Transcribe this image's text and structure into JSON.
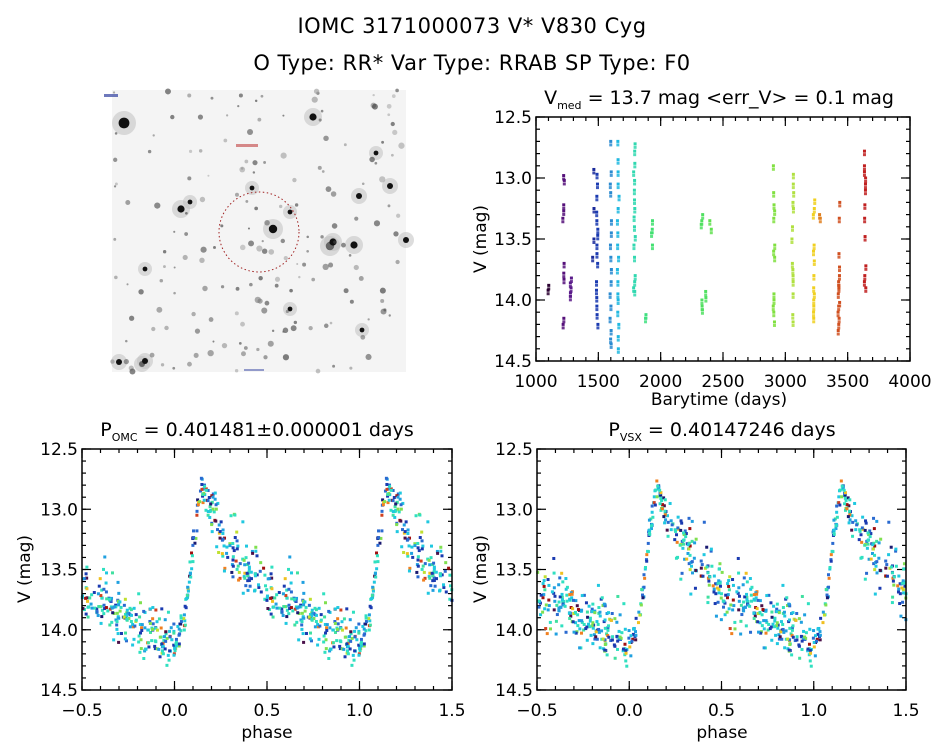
{
  "header": {
    "line1": "IOMC 3171000073    V* V830 Cyg",
    "line2": "O Type: RR*  Var Type: RRAB  SP Type: F0"
  },
  "finder_chart": {
    "description": "Grayscale sky image (inverted) with dashed red circle marking target",
    "circle_color": "#cc2222",
    "corner_labels_legible": false
  },
  "chart_data": [
    {
      "id": "lightcurve",
      "type": "scatter",
      "title_main": "V",
      "title_sub": "med",
      "title_rest": " = 13.7 mag <err_V> = 0.1 mag",
      "xlabel": "Barytime (days)",
      "ylabel": "V (mag)",
      "xlim": [
        1000,
        4000
      ],
      "ylim": [
        12.5,
        14.5
      ],
      "y_inverted": true,
      "xticks": [
        1000,
        1500,
        2000,
        2500,
        3000,
        3500,
        4000
      ],
      "xtick_labels": [
        "1000",
        "1500",
        "2000",
        "2500",
        "3000",
        "3500",
        "4000"
      ],
      "yticks": [
        12.5,
        13.0,
        13.5,
        14.0,
        14.5
      ],
      "ytick_labels": [
        "12.5",
        "13.0",
        "13.5",
        "14.0",
        "14.5"
      ],
      "color_map": "rainbow by time",
      "groups": [
        {
          "x": 1100,
          "color": "#2a0030",
          "mags": [
            13.88,
            13.92
          ]
        },
        {
          "x": 1220,
          "color": "#55107a",
          "mags": [
            12.98,
            13.02,
            13.22,
            13.27,
            13.33,
            13.7,
            13.78,
            13.83,
            14.15,
            14.2
          ]
        },
        {
          "x": 1280,
          "color": "#5a1a8a",
          "mags": [
            13.82,
            13.86,
            13.9,
            13.94,
            13.97
          ]
        },
        {
          "x": 1460,
          "color": "#1a2a9a",
          "mags": [
            12.93,
            13.25,
            13.5,
            13.65
          ]
        },
        {
          "x": 1490,
          "color": "#1a3ab0",
          "mags": [
            12.97,
            13.05,
            13.15,
            13.28,
            13.35,
            13.42,
            13.47,
            13.55,
            13.62,
            13.7,
            13.85,
            13.92,
            13.98,
            14.05,
            14.12,
            14.2
          ]
        },
        {
          "x": 1600,
          "color": "#2a8ad0",
          "mags": [
            12.7,
            12.95,
            13.05,
            13.12,
            13.35,
            13.45,
            13.55,
            13.65,
            13.75,
            13.85,
            13.95,
            14.05,
            14.15,
            14.25,
            14.32,
            14.36
          ]
        },
        {
          "x": 1660,
          "color": "#20b8e0",
          "mags": [
            12.7,
            12.85,
            12.95,
            13.05,
            13.15,
            13.25,
            13.35,
            13.45,
            13.55,
            13.65,
            13.75,
            13.85,
            13.95,
            14.0,
            14.1,
            14.2,
            14.3,
            14.4
          ]
        },
        {
          "x": 1790,
          "color": "#30d8b0",
          "mags": [
            12.72,
            12.78,
            12.88,
            12.95,
            13.02,
            13.1,
            13.18,
            13.25,
            13.32,
            13.4,
            13.48,
            13.55,
            13.65,
            13.8,
            13.85,
            13.9,
            13.93
          ]
        },
        {
          "x": 1880,
          "color": "#40e080",
          "mags": [
            14.12,
            14.15
          ]
        },
        {
          "x": 1930,
          "color": "#40e070",
          "mags": [
            13.35,
            13.42,
            13.45,
            13.55
          ]
        },
        {
          "x": 2330,
          "color": "#50e060",
          "mags": [
            13.3,
            13.35,
            13.38,
            14.0,
            14.05,
            14.08
          ]
        },
        {
          "x": 2360,
          "color": "#50e060",
          "mags": [
            13.93,
            13.98
          ]
        },
        {
          "x": 2400,
          "color": "#60e050",
          "mags": [
            13.35,
            13.42
          ]
        },
        {
          "x": 2910,
          "color": "#80e040",
          "mags": [
            12.9,
            13.12,
            13.22,
            13.27,
            13.33,
            13.55,
            13.6,
            13.65,
            13.95,
            14.0,
            14.05,
            14.1,
            14.18
          ]
        },
        {
          "x": 3060,
          "color": "#b0e040",
          "mags": [
            12.97,
            13.05,
            13.12,
            13.2,
            13.25,
            13.4,
            13.5,
            13.7,
            13.75,
            13.8,
            13.85,
            13.95,
            14.12,
            14.18
          ]
        },
        {
          "x": 3230,
          "color": "#f0d020",
          "mags": [
            13.18,
            13.25,
            13.3,
            13.55,
            13.6,
            13.68,
            13.8,
            13.9,
            13.95,
            14.0,
            14.05,
            14.1,
            14.15
          ]
        },
        {
          "x": 3280,
          "color": "#e08020",
          "mags": [
            13.3,
            13.33
          ]
        },
        {
          "x": 3430,
          "color": "#d05020",
          "mags": [
            13.2,
            13.33,
            13.62,
            13.73,
            13.8,
            13.85,
            13.88,
            13.9,
            13.95,
            14.02,
            14.05,
            14.1,
            14.15,
            14.2,
            14.25
          ]
        },
        {
          "x": 3640,
          "color": "#c02020",
          "mags": [
            12.78,
            12.9,
            12.95,
            13.0,
            13.05,
            13.1,
            13.22,
            13.33,
            13.48,
            13.72,
            13.8,
            13.85,
            13.9
          ]
        }
      ]
    },
    {
      "id": "phase-omc",
      "type": "scatter",
      "title_main": "P",
      "title_sub": "OMC",
      "title_rest": " = 0.401481±0.000001 days",
      "xlabel": "phase",
      "ylabel": "V (mag)",
      "xlim": [
        -0.5,
        1.5
      ],
      "ylim": [
        12.5,
        14.5
      ],
      "y_inverted": true,
      "xticks": [
        -0.5,
        0.0,
        0.5,
        1.0,
        1.5
      ],
      "xtick_labels": [
        "−0.5",
        "0.0",
        "0.5",
        "1.0",
        "1.5"
      ],
      "yticks": [
        12.5,
        13.0,
        13.5,
        14.0,
        14.5
      ],
      "ytick_labels": [
        "12.5",
        "13.0",
        "13.5",
        "14.0",
        "14.5"
      ],
      "template": [
        [
          0.0,
          14.15
        ],
        [
          0.05,
          13.95
        ],
        [
          0.08,
          13.6
        ],
        [
          0.1,
          13.3
        ],
        [
          0.13,
          13.0
        ],
        [
          0.15,
          12.8
        ],
        [
          0.18,
          12.95
        ],
        [
          0.25,
          13.2
        ],
        [
          0.32,
          13.35
        ],
        [
          0.4,
          13.5
        ],
        [
          0.5,
          13.65
        ],
        [
          0.6,
          13.75
        ],
        [
          0.7,
          13.85
        ],
        [
          0.8,
          13.95
        ],
        [
          0.9,
          14.02
        ],
        [
          0.95,
          14.1
        ],
        [
          1.0,
          14.15
        ]
      ],
      "scatter_mag": 0.12,
      "n_points_per_cycle": 420
    },
    {
      "id": "phase-vsx",
      "type": "scatter",
      "title_main": "P",
      "title_sub": "VSX",
      "title_rest": " = 0.40147246 days",
      "xlabel": "phase",
      "ylabel": "V (mag)",
      "xlim": [
        -0.5,
        1.5
      ],
      "ylim": [
        12.5,
        14.5
      ],
      "y_inverted": true,
      "xticks": [
        -0.5,
        0.0,
        0.5,
        1.0,
        1.5
      ],
      "xtick_labels": [
        "−0.5",
        "0.0",
        "0.5",
        "1.0",
        "1.5"
      ],
      "yticks": [
        12.5,
        13.0,
        13.5,
        14.0,
        14.5
      ],
      "ytick_labels": [
        "12.5",
        "13.0",
        "13.5",
        "14.0",
        "14.5"
      ],
      "template": [
        [
          0.0,
          14.15
        ],
        [
          0.05,
          13.95
        ],
        [
          0.08,
          13.6
        ],
        [
          0.1,
          13.3
        ],
        [
          0.13,
          13.0
        ],
        [
          0.15,
          12.8
        ],
        [
          0.18,
          12.95
        ],
        [
          0.25,
          13.2
        ],
        [
          0.32,
          13.35
        ],
        [
          0.4,
          13.5
        ],
        [
          0.5,
          13.65
        ],
        [
          0.6,
          13.75
        ],
        [
          0.7,
          13.85
        ],
        [
          0.8,
          13.95
        ],
        [
          0.9,
          14.02
        ],
        [
          0.95,
          14.1
        ],
        [
          1.0,
          14.15
        ]
      ],
      "shifted_late_points": {
        "phase_offset": 0.1,
        "colors": [
          "#c02020",
          "#d05020",
          "#e08020"
        ]
      },
      "scatter_mag": 0.12,
      "n_points_per_cycle": 420
    }
  ]
}
